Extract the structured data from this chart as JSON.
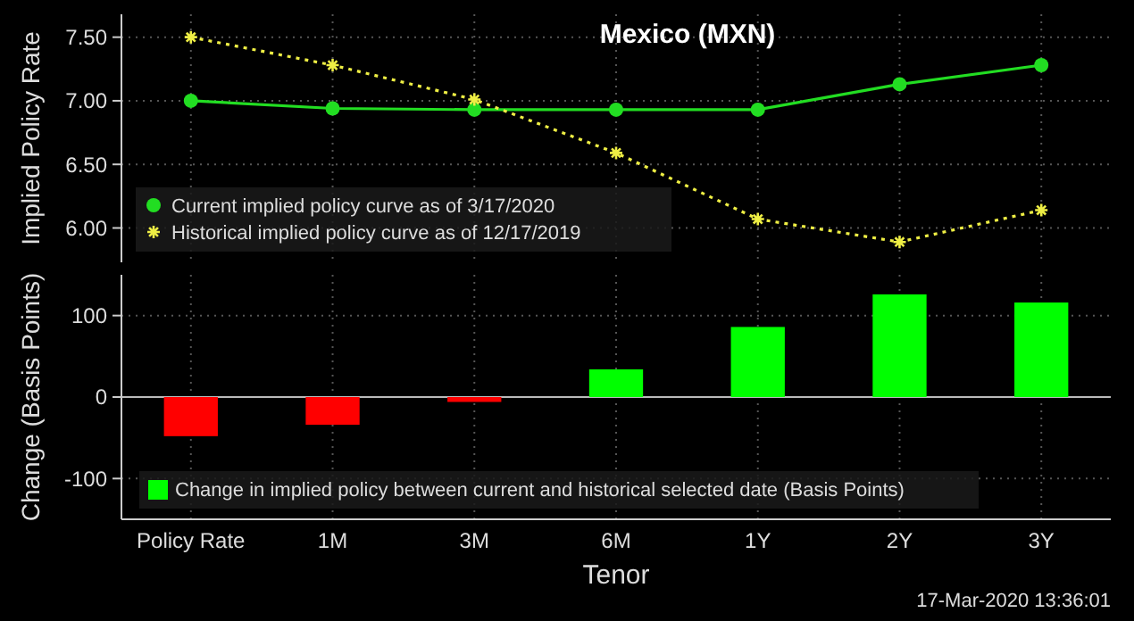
{
  "chart_data": [
    {
      "type": "line",
      "title": "Mexico (MXN)",
      "ylabel": "Implied Policy Rate",
      "categories": [
        null,
        null,
        null,
        null,
        null,
        null,
        null
      ],
      "ylim": [
        5.73,
        7.68
      ],
      "yticks": [
        {
          "value": 6,
          "label": "6.00"
        },
        {
          "value": 6.5,
          "label": "6.50"
        },
        {
          "value": 7,
          "label": "7.00"
        },
        {
          "value": 7.5,
          "label": "7.50"
        }
      ],
      "grid": true,
      "legend": "bottom left",
      "series": [
        {
          "name": "Current implied policy curve as of 3/17/2020",
          "color": "#22dd22",
          "marker": "circle",
          "line_style": "solid",
          "values": [
            7.0,
            6.94,
            6.93,
            6.93,
            6.93,
            7.13,
            7.28
          ]
        },
        {
          "name": "Historical implied policy curve as of 12/17/2019",
          "color": "#eeee44",
          "marker": "cross",
          "line_style": "dotted",
          "values": [
            7.5,
            7.28,
            7.01,
            6.59,
            6.07,
            5.89,
            6.14
          ]
        }
      ]
    },
    {
      "type": "bar",
      "ylabel": "Change (Basis Points)",
      "xlabel": "Tenor",
      "categories": [
        "Policy Rate",
        "1M",
        "3M",
        "6M",
        "1Y",
        "2Y",
        "3Y"
      ],
      "ylim": [
        -150,
        150
      ],
      "yticks": [
        -100,
        0,
        100
      ],
      "grid": true,
      "legend": "bottom",
      "annotations": [
        "17-Mar-2020 13:36:01"
      ],
      "series": [
        {
          "name": "Change in implied policy between current and historical selected date (Basis Points)",
          "color": "#00ff00",
          "colors": [
            "#ff0000",
            "#ff0000",
            "#ff0000",
            "#00ff00",
            "#00ff00",
            "#00ff00",
            "#00ff00"
          ],
          "values": [
            -48,
            -34,
            -6,
            34,
            86,
            126,
            116
          ]
        }
      ]
    }
  ]
}
